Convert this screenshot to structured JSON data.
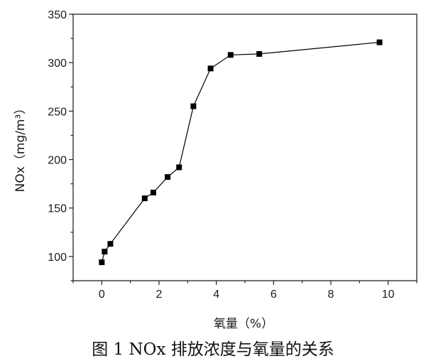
{
  "chart_data": {
    "type": "line",
    "x": [
      0.0,
      0.1,
      0.3,
      1.5,
      1.8,
      2.3,
      2.7,
      3.2,
      3.8,
      4.5,
      5.5,
      9.7
    ],
    "series": [
      {
        "values": [
          94,
          105,
          113,
          160,
          166,
          182,
          192,
          255,
          294,
          308,
          309,
          321
        ]
      }
    ],
    "xlabel": "氧量（%）",
    "ylabel": "NOx（mg/m³）",
    "xlim": [
      -1,
      11
    ],
    "ylim": [
      75,
      350
    ],
    "xticks": [
      "0",
      "2",
      "4",
      "6",
      "8",
      "10"
    ],
    "yticks": [
      "100",
      "150",
      "200",
      "250",
      "300",
      "350"
    ],
    "grid": false,
    "marker": "square",
    "color": "#000000"
  },
  "caption": "图 1  NOx 排放浓度与氧量的关系"
}
